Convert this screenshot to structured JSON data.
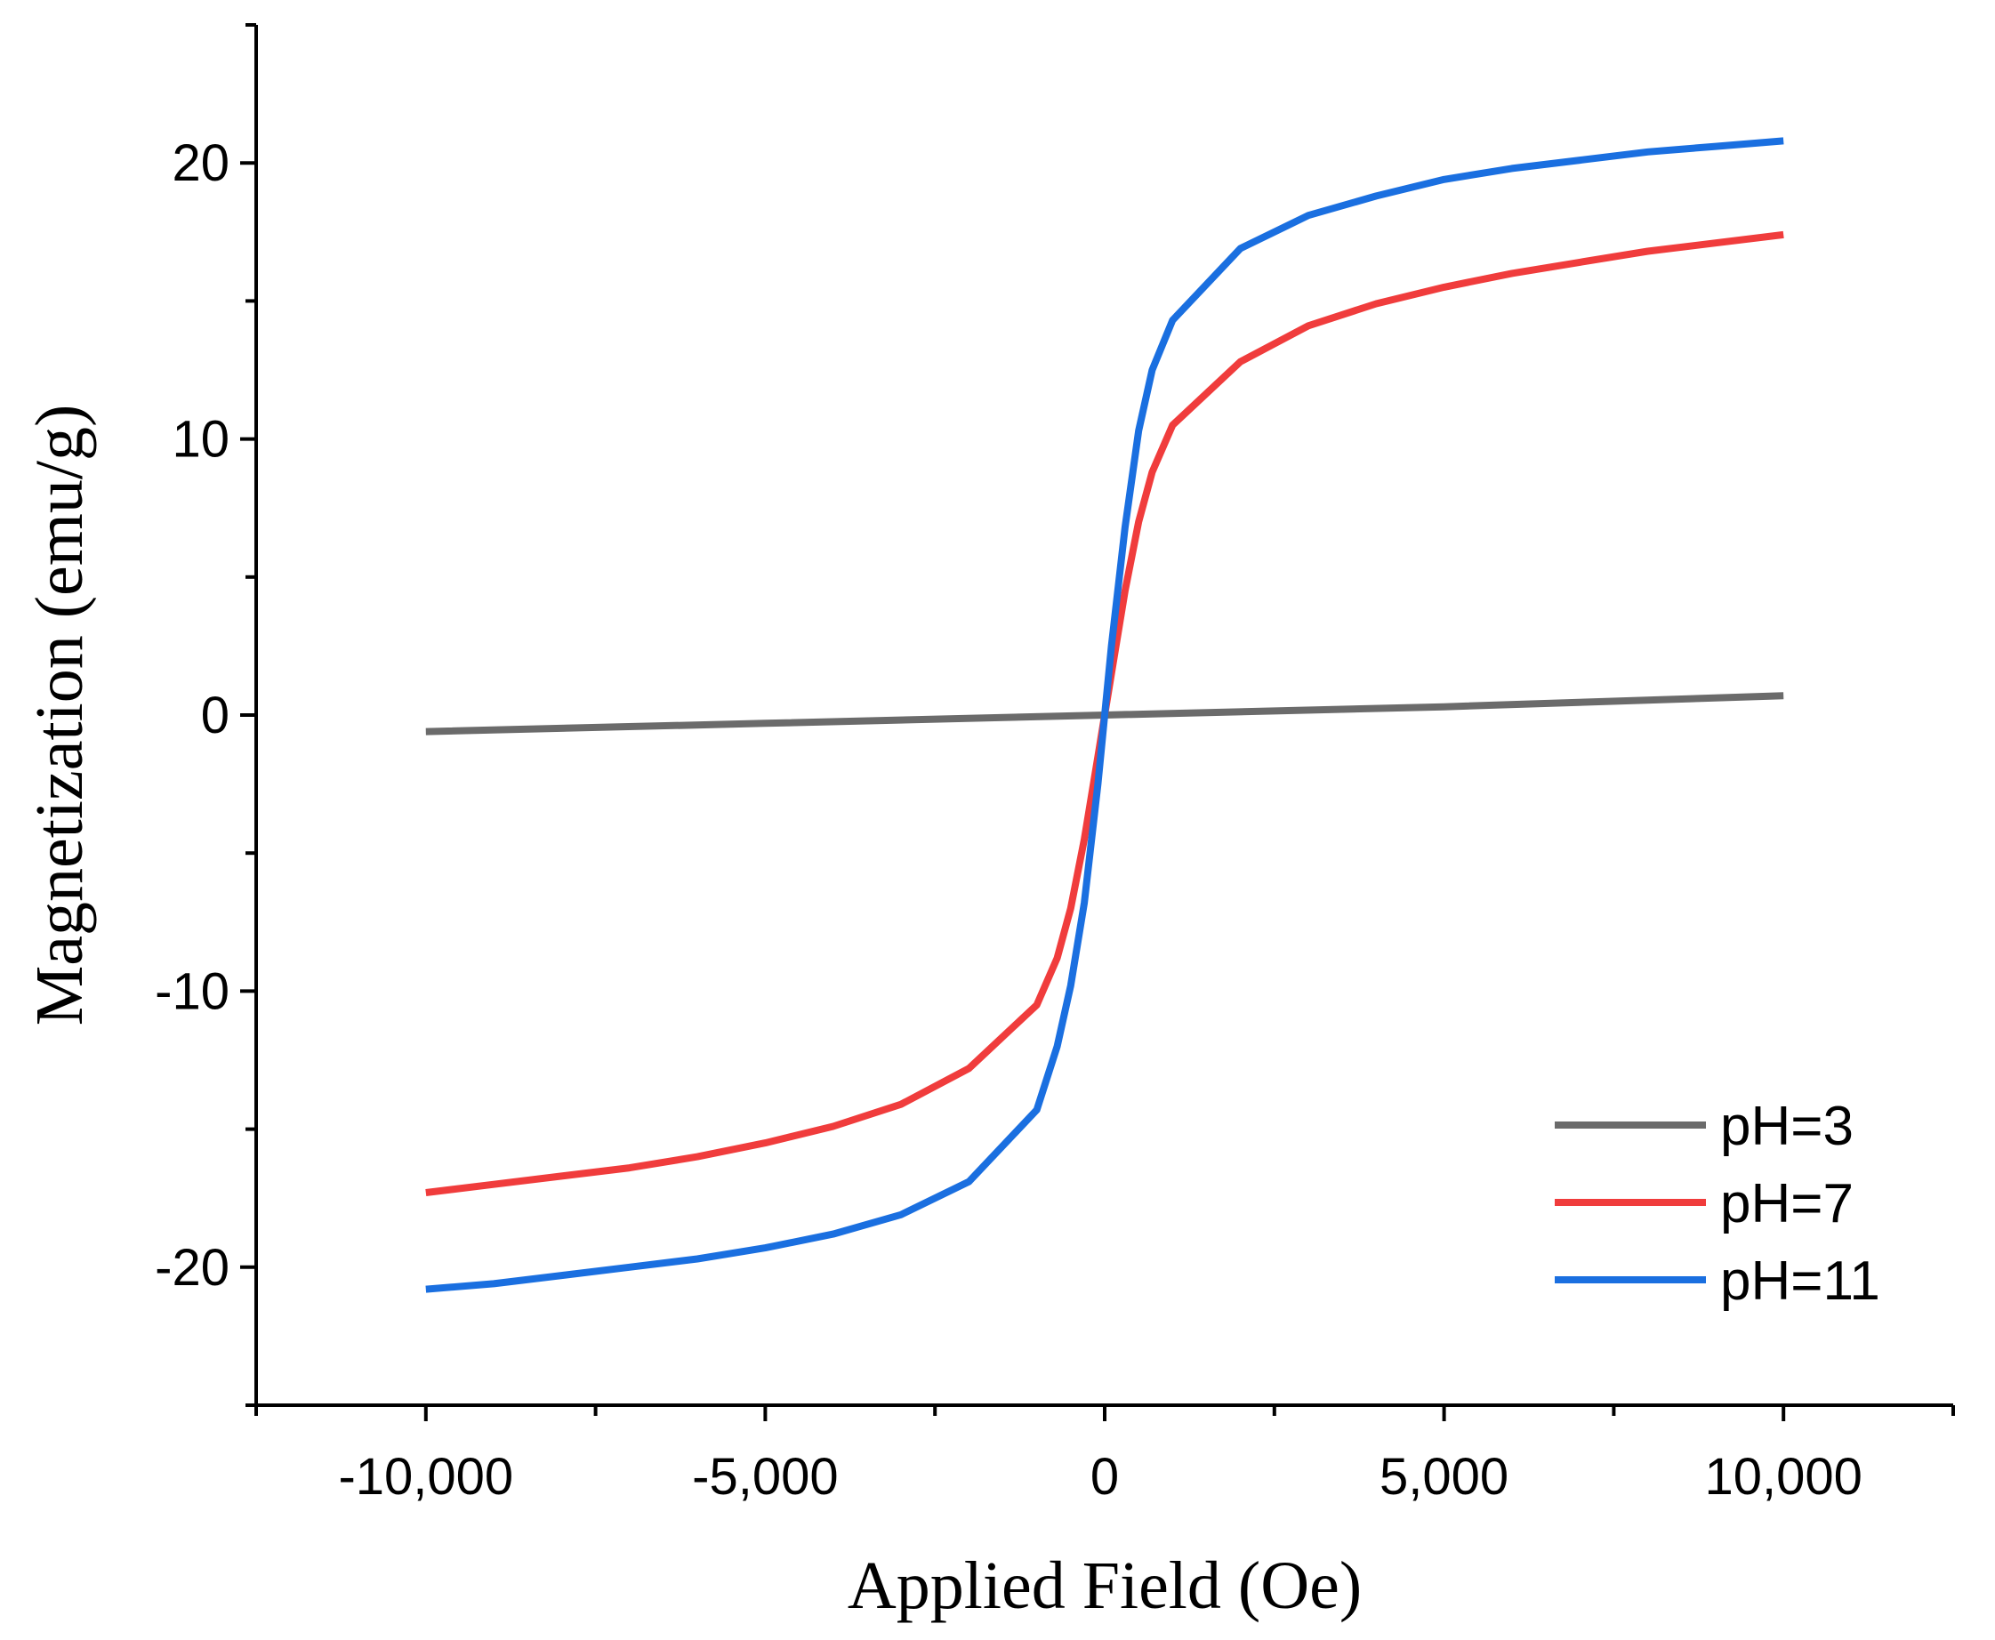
{
  "chart_data": {
    "type": "line",
    "title": "",
    "xlabel": "Applied Field (Oe)",
    "ylabel": "Magnetization (emu/g)",
    "xlim": [
      -12500,
      12500
    ],
    "ylim": [
      -25,
      25
    ],
    "x_ticks": [
      -10000,
      -5000,
      0,
      5000,
      10000
    ],
    "x_tick_labels": [
      "-10,000",
      "-5,000",
      "0",
      "5,000",
      "10,000"
    ],
    "y_ticks": [
      -20,
      -10,
      0,
      10,
      20
    ],
    "y_tick_labels": [
      "-20",
      "-10",
      "0",
      "10",
      "20"
    ],
    "grid": false,
    "legend_position": "bottom-right",
    "series": [
      {
        "name": "pH=3",
        "color": "#6b6b6b",
        "points": [
          [
            -10000,
            -0.6
          ],
          [
            -5000,
            -0.3
          ],
          [
            0,
            0
          ],
          [
            5000,
            0.3
          ],
          [
            10000,
            0.7
          ]
        ]
      },
      {
        "name": "pH=7",
        "color": "#f03c3c",
        "points": [
          [
            -10000,
            -17.3
          ],
          [
            -9000,
            -17.0
          ],
          [
            -8000,
            -16.7
          ],
          [
            -7000,
            -16.4
          ],
          [
            -6000,
            -16.0
          ],
          [
            -5000,
            -15.5
          ],
          [
            -4000,
            -14.9
          ],
          [
            -3000,
            -14.1
          ],
          [
            -2000,
            -12.8
          ],
          [
            -1000,
            -10.5
          ],
          [
            -700,
            -8.8
          ],
          [
            -500,
            -7.0
          ],
          [
            -300,
            -4.5
          ],
          [
            -100,
            -1.5
          ],
          [
            0,
            0
          ],
          [
            100,
            1.5
          ],
          [
            300,
            4.5
          ],
          [
            500,
            7.0
          ],
          [
            700,
            8.8
          ],
          [
            1000,
            10.5
          ],
          [
            2000,
            12.8
          ],
          [
            3000,
            14.1
          ],
          [
            4000,
            14.9
          ],
          [
            5000,
            15.5
          ],
          [
            6000,
            16.0
          ],
          [
            7000,
            16.4
          ],
          [
            8000,
            16.8
          ],
          [
            9000,
            17.1
          ],
          [
            10000,
            17.4
          ]
        ]
      },
      {
        "name": "pH=11",
        "color": "#1a6fe0",
        "points": [
          [
            -10000,
            -20.8
          ],
          [
            -9000,
            -20.6
          ],
          [
            -8000,
            -20.3
          ],
          [
            -7000,
            -20.0
          ],
          [
            -6000,
            -19.7
          ],
          [
            -5000,
            -19.3
          ],
          [
            -4000,
            -18.8
          ],
          [
            -3000,
            -18.1
          ],
          [
            -2000,
            -16.9
          ],
          [
            -1000,
            -14.3
          ],
          [
            -700,
            -12.0
          ],
          [
            -500,
            -9.8
          ],
          [
            -300,
            -6.8
          ],
          [
            -100,
            -2.5
          ],
          [
            0,
            0
          ],
          [
            100,
            2.5
          ],
          [
            300,
            6.8
          ],
          [
            500,
            10.3
          ],
          [
            700,
            12.5
          ],
          [
            1000,
            14.3
          ],
          [
            2000,
            16.9
          ],
          [
            3000,
            18.1
          ],
          [
            4000,
            18.8
          ],
          [
            5000,
            19.4
          ],
          [
            6000,
            19.8
          ],
          [
            7000,
            20.1
          ],
          [
            8000,
            20.4
          ],
          [
            9000,
            20.6
          ],
          [
            10000,
            20.8
          ]
        ]
      }
    ]
  }
}
